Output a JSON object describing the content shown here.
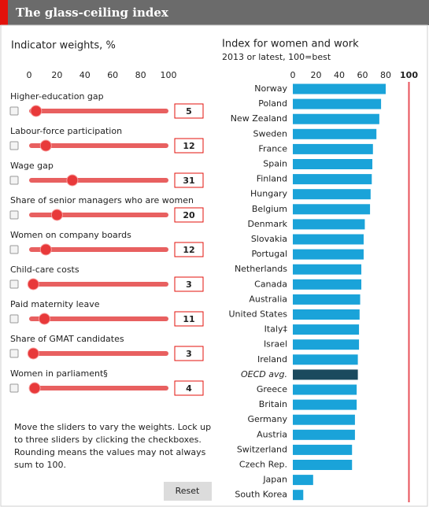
{
  "header": {
    "title": "The glass-ceiling index"
  },
  "weights": {
    "title": "Indicator weights, %",
    "ticks": [
      0,
      20,
      40,
      60,
      80,
      100
    ],
    "lim": [
      0,
      100
    ],
    "sliders": [
      {
        "label": "Higher-education gap",
        "value": 5
      },
      {
        "label": "Labour-force participation",
        "value": 12
      },
      {
        "label": "Wage gap",
        "value": 31
      },
      {
        "label": "Share of senior managers who are women",
        "value": 20
      },
      {
        "label": "Women on company boards",
        "value": 12
      },
      {
        "label": "Child-care costs",
        "value": 3
      },
      {
        "label": "Paid maternity leave",
        "value": 11
      },
      {
        "label": "Share of GMAT candidates",
        "value": 3
      },
      {
        "label": "Women in parliament§",
        "value": 4
      }
    ],
    "note": [
      "Move the sliders to vary the weights. Lock up",
      "to three sliders by clicking the checkboxes.",
      "Rounding means the values may not always",
      "sum to 100."
    ],
    "button": "Reset"
  },
  "chart_data": {
    "type": "hbar",
    "title": "Index for women and work",
    "subtitle": "2013 or latest, 100=best",
    "categories": [
      "Norway",
      "Poland",
      "New Zealand",
      "Sweden",
      "France",
      "Spain",
      "Finland",
      "Hungary",
      "Belgium",
      "Denmark",
      "Slovakia",
      "Portugal",
      "Netherlands",
      "Canada",
      "Australia",
      "United States",
      "Italy‡",
      "Israel",
      "Ireland",
      "OECD avg.",
      "Greece",
      "Britain",
      "Germany",
      "Austria",
      "Switzerland",
      "Czech Rep.",
      "Japan",
      "South Korea"
    ],
    "values": [
      80,
      76,
      74.5,
      72,
      69,
      68.5,
      68,
      67,
      66.5,
      62,
      61,
      61,
      59,
      59,
      58,
      57.5,
      57,
      57,
      56,
      56,
      55,
      55,
      53.5,
      53.5,
      51,
      51,
      17.5,
      9
    ],
    "colors": [
      "#1aa3d9",
      "#1aa3d9",
      "#1aa3d9",
      "#1aa3d9",
      "#1aa3d9",
      "#1aa3d9",
      "#1aa3d9",
      "#1aa3d9",
      "#1aa3d9",
      "#1aa3d9",
      "#1aa3d9",
      "#1aa3d9",
      "#1aa3d9",
      "#1aa3d9",
      "#1aa3d9",
      "#1aa3d9",
      "#1aa3d9",
      "#1aa3d9",
      "#1aa3d9",
      "#1b4a5e",
      "#1aa3d9",
      "#1aa3d9",
      "#1aa3d9",
      "#1aa3d9",
      "#1aa3d9",
      "#1aa3d9",
      "#1aa3d9",
      "#1aa3d9"
    ],
    "xlim": [
      0,
      100
    ],
    "xticks": [
      0,
      20,
      40,
      60,
      80
    ],
    "reference_line": 100,
    "reference_color": "#e8505a"
  }
}
